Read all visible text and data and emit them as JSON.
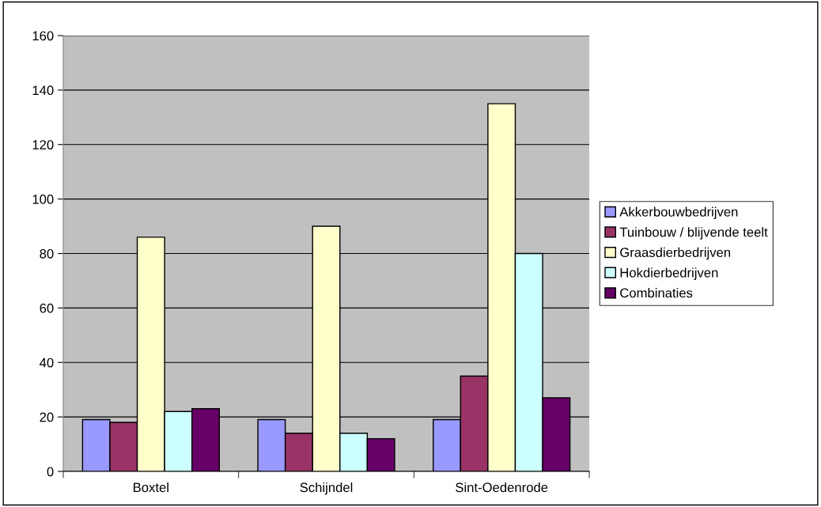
{
  "chart_data": {
    "type": "bar",
    "categories": [
      "Boxtel",
      "Schijndel",
      "Sint-Oedenrode"
    ],
    "series": [
      {
        "name": "Akkerbouwbedrijven",
        "color": "#9999ff",
        "values": [
          19,
          19,
          19
        ]
      },
      {
        "name": "Tuinbouw / blijvende teelt",
        "color": "#993366",
        "values": [
          18,
          14,
          35
        ]
      },
      {
        "name": "Graasdierbedrijven",
        "color": "#ffffcc",
        "values": [
          86,
          90,
          135
        ]
      },
      {
        "name": "Hokdierbedrijven",
        "color": "#ccffff",
        "values": [
          22,
          14,
          80
        ]
      },
      {
        "name": "Combinaties",
        "color": "#660066",
        "values": [
          23,
          12,
          27
        ]
      }
    ],
    "ylim": [
      0,
      160
    ],
    "yticks": [
      0,
      20,
      40,
      60,
      80,
      100,
      120,
      140,
      160
    ],
    "grid": "y",
    "legend": "right"
  }
}
